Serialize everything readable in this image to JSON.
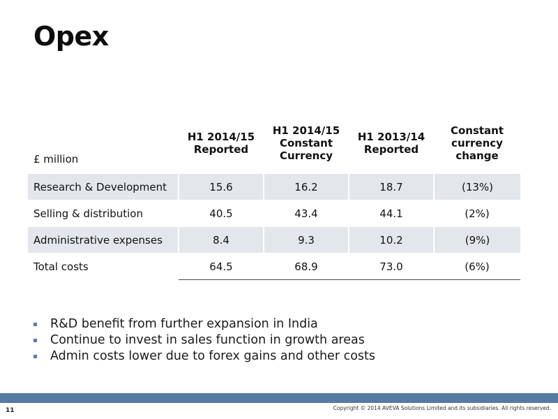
{
  "slide": {
    "title": "Opex",
    "page_number": "11",
    "copyright": "Copyright © 2014 AVEVA Solutions Limited and its subsidiaries. All rights reserved."
  },
  "table": {
    "row_header": "£ million",
    "columns": [
      "H1 2014/15 Reported",
      "H1 2014/15 Constant Currency",
      "H1 2013/14 Reported",
      "Constant currency change"
    ],
    "rows": [
      {
        "label": "Research & Development",
        "values": [
          "15.6",
          "16.2",
          "18.7",
          "(13%)"
        ]
      },
      {
        "label": "Selling & distribution",
        "values": [
          "40.5",
          "43.4",
          "44.1",
          "(2%)"
        ]
      },
      {
        "label": "Administrative expenses",
        "values": [
          "8.4",
          "9.3",
          "10.2",
          "(9%)"
        ]
      },
      {
        "label": "Total costs",
        "values": [
          "64.5",
          "68.9",
          "73.0",
          "(6%)"
        ]
      }
    ]
  },
  "bullets": [
    "R&D benefit from further expansion in India",
    "Continue to invest in sales function in growth areas",
    "Admin costs lower due to forex gains and other costs"
  ],
  "colors": {
    "row_shade": "#e3e7ec",
    "footer_bar": "#567aa3",
    "bullet_marker": "#4f7fb0"
  }
}
